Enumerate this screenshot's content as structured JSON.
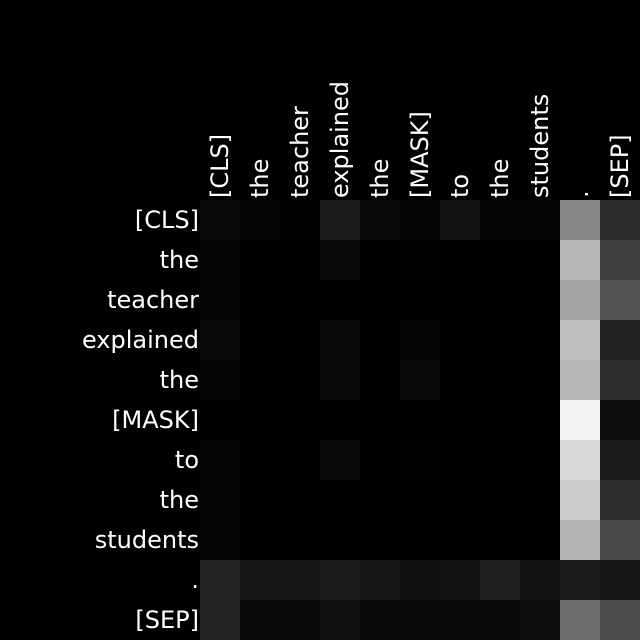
{
  "chart_data": {
    "type": "heatmap",
    "x_tokens": [
      "[CLS]",
      "the",
      "teacher",
      "explained",
      "the",
      "[MASK]",
      "to",
      "the",
      "students",
      ".",
      "[SEP]"
    ],
    "y_tokens": [
      "[CLS]",
      "the",
      "teacher",
      "explained",
      "the",
      "[MASK]",
      "to",
      "the",
      "students",
      ".",
      "[SEP]"
    ],
    "colormap": "grayscale (black = 0, white = max)",
    "values": [
      [
        0.03,
        0.02,
        0.01,
        0.1,
        0.03,
        0.02,
        0.07,
        0.02,
        0.02,
        0.53,
        0.17
      ],
      [
        0.02,
        0.0,
        0.0,
        0.03,
        0.0,
        0.01,
        0.0,
        0.0,
        0.0,
        0.72,
        0.25
      ],
      [
        0.02,
        0.0,
        0.0,
        0.0,
        0.0,
        0.0,
        0.0,
        0.0,
        0.0,
        0.64,
        0.33
      ],
      [
        0.03,
        0.0,
        0.0,
        0.04,
        0.0,
        0.02,
        0.0,
        0.0,
        0.0,
        0.75,
        0.13
      ],
      [
        0.02,
        0.0,
        0.0,
        0.03,
        0.0,
        0.03,
        0.0,
        0.0,
        0.0,
        0.72,
        0.18
      ],
      [
        0.0,
        0.0,
        0.0,
        0.0,
        0.0,
        0.0,
        0.0,
        0.0,
        0.0,
        0.95,
        0.05
      ],
      [
        0.02,
        0.0,
        0.0,
        0.03,
        0.0,
        0.01,
        0.0,
        0.0,
        0.0,
        0.85,
        0.1
      ],
      [
        0.02,
        0.0,
        0.0,
        0.0,
        0.0,
        0.0,
        0.0,
        0.0,
        0.0,
        0.8,
        0.18
      ],
      [
        0.02,
        0.0,
        0.0,
        0.0,
        0.0,
        0.0,
        0.0,
        0.0,
        0.0,
        0.7,
        0.28
      ],
      [
        0.14,
        0.09,
        0.09,
        0.1,
        0.09,
        0.06,
        0.07,
        0.12,
        0.07,
        0.1,
        0.09
      ],
      [
        0.14,
        0.03,
        0.03,
        0.06,
        0.03,
        0.03,
        0.03,
        0.03,
        0.05,
        0.42,
        0.3
      ]
    ]
  }
}
